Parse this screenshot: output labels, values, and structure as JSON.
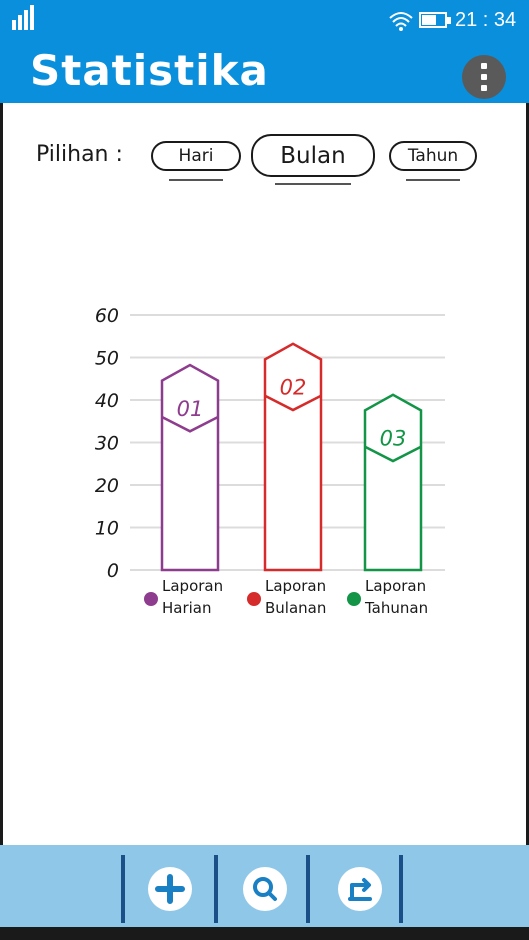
{
  "status_bar": {
    "time": "21 : 34"
  },
  "header": {
    "title": "Statistika"
  },
  "filter": {
    "label": "Pilihan :",
    "options": [
      "Hari",
      "Bulan",
      "Tahun"
    ],
    "selected": "Bulan"
  },
  "chart_data": {
    "type": "bar",
    "categories": [
      "Laporan Harian",
      "Laporan Bulanan",
      "Laporan Tahunan"
    ],
    "values": [
      36,
      41,
      29
    ],
    "bar_tags": [
      "01",
      "02",
      "03"
    ],
    "colors": [
      "#8e3d8e",
      "#d62b2b",
      "#129546"
    ],
    "yticks": [
      0,
      10,
      20,
      30,
      40,
      50,
      60
    ],
    "ylim": [
      0,
      60
    ],
    "grid": true,
    "legend": [
      "Laporan\nHarian",
      "Laporan\nBulanan",
      "Laporan\nTahunan"
    ]
  },
  "bottom_nav": [
    "add-icon",
    "search-icon",
    "export-icon"
  ]
}
